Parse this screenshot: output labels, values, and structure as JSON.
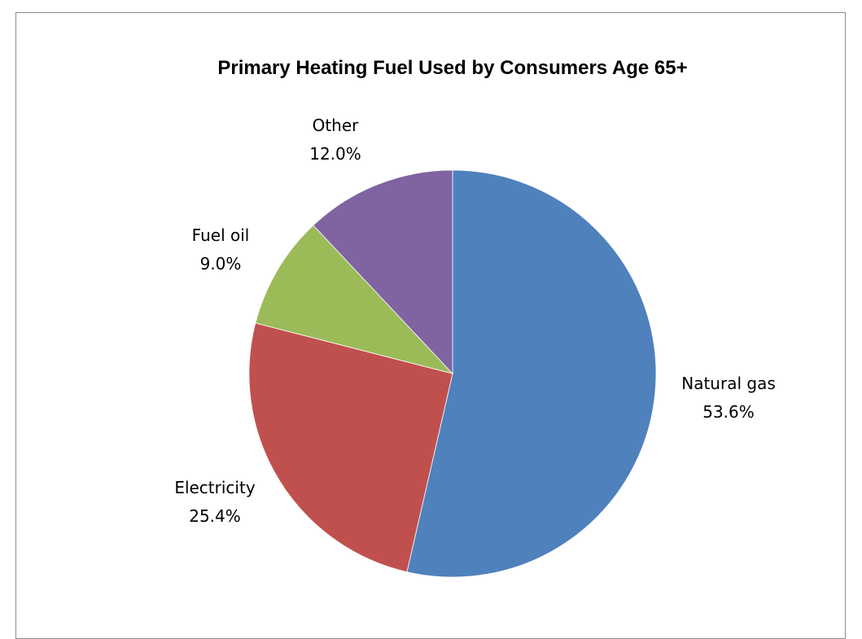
{
  "chart_data": {
    "type": "pie",
    "title": "Primary Heating Fuel Used by Consumers Age 65+",
    "slices": [
      {
        "label": "Natural gas",
        "value": 53.6,
        "value_label": "53.6%",
        "color": "#4F81BD"
      },
      {
        "label": "Electricity",
        "value": 25.4,
        "value_label": "25.4%",
        "color": "#C0504D"
      },
      {
        "label": "Fuel oil",
        "value": 9.0,
        "value_label": "9.0%",
        "color": "#9BBB59"
      },
      {
        "label": "Other",
        "value": 12.0,
        "value_label": "12.0%",
        "color": "#8064A2"
      }
    ],
    "start_angle_deg": 0,
    "direction": "clockwise",
    "data_labels": "outside",
    "legend": "none"
  }
}
